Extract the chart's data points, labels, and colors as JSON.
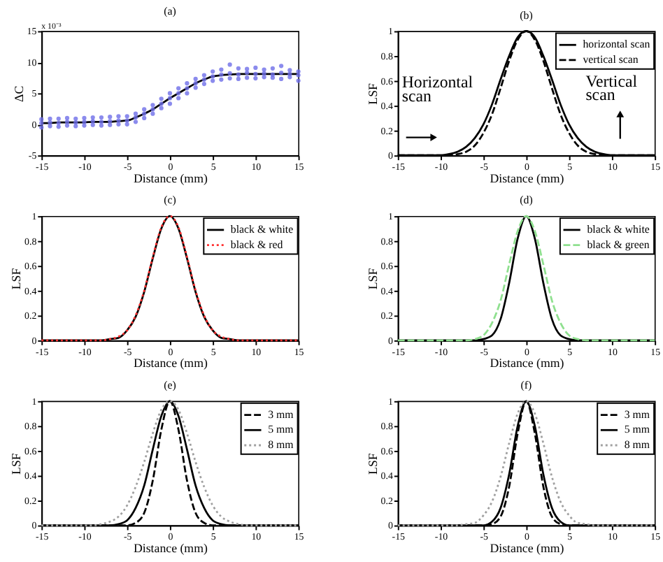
{
  "chart_data": [
    {
      "type": "scatter",
      "title": "(a)",
      "xlabel": "Distance (mm)",
      "ylabel": "ΔC",
      "annotations": [
        "x 10⁻³"
      ],
      "xlim": [
        -15,
        15
      ],
      "xticks": [
        -15,
        -10,
        -5,
        0,
        5,
        10,
        15
      ],
      "ylim": [
        -5,
        15
      ],
      "yticks": [
        -5,
        0,
        5,
        10,
        15
      ],
      "x": [
        -15,
        -14,
        -13,
        -12,
        -11,
        -10,
        -9,
        -8,
        -7,
        -6,
        -5,
        -4,
        -3,
        -2,
        -1,
        0,
        1,
        2,
        3,
        4,
        5,
        6,
        7,
        8,
        9,
        10,
        11,
        12,
        13,
        14,
        15
      ],
      "series": [
        {
          "type": "scatter",
          "marker": "circle",
          "color": "#6e6ee8",
          "x": [
            -15,
            -15,
            -15,
            -14,
            -14,
            -14,
            -13,
            -13,
            -13,
            -12,
            -12,
            -12,
            -11,
            -11,
            -11,
            -10,
            -10,
            -10,
            -9,
            -9,
            -9,
            -8,
            -8,
            -8,
            -7,
            -7,
            -7,
            -6,
            -6,
            -6,
            -5,
            -5,
            -5,
            -4,
            -4,
            -4,
            -3,
            -3,
            -3,
            -2,
            -2,
            -2,
            -1,
            -1,
            -1,
            0,
            0,
            0,
            1,
            1,
            1,
            2,
            2,
            2,
            3,
            3,
            3,
            4,
            4,
            4,
            5,
            5,
            5,
            6,
            6,
            6,
            7,
            7,
            7,
            8,
            8,
            8,
            9,
            9,
            9,
            10,
            10,
            10,
            11,
            11,
            11,
            12,
            12,
            12,
            13,
            13,
            13,
            14,
            14,
            14,
            15,
            15,
            15
          ],
          "values": [
            -0.5,
            0.2,
            0.8,
            -0.3,
            0.3,
            0.9,
            -0.4,
            0.2,
            0.9,
            -0.2,
            0.4,
            1.0,
            -0.3,
            0.3,
            0.9,
            -0.2,
            0.4,
            1.0,
            -0.1,
            0.5,
            1.1,
            -0.2,
            0.4,
            1.1,
            -0.1,
            0.5,
            1.2,
            0.0,
            0.6,
            1.3,
            0.0,
            0.6,
            1.3,
            0.4,
            1.1,
            1.7,
            1.0,
            1.7,
            2.4,
            1.7,
            2.4,
            3.1,
            2.6,
            3.3,
            4.1,
            3.3,
            4.2,
            5.0,
            4.2,
            5.0,
            5.8,
            5.0,
            5.8,
            6.6,
            5.9,
            6.6,
            7.3,
            6.5,
            7.2,
            7.9,
            7.0,
            7.7,
            8.5,
            7.2,
            8.0,
            8.8,
            7.4,
            8.2,
            9.6,
            7.3,
            8.0,
            9.0,
            7.5,
            8.3,
            8.9,
            7.4,
            8.1,
            9.1,
            7.6,
            8.2,
            8.8,
            7.5,
            8.0,
            9.0,
            7.3,
            8.3,
            9.4,
            7.6,
            8.1,
            8.7,
            7.0,
            7.9,
            8.5
          ]
        },
        {
          "type": "line",
          "line_style": "solid",
          "color": "#000000",
          "values": [
            0.2,
            0.2,
            0.3,
            0.3,
            0.3,
            0.3,
            0.4,
            0.4,
            0.4,
            0.5,
            0.6,
            1.1,
            1.7,
            2.4,
            3.3,
            4.2,
            5.0,
            5.8,
            6.6,
            7.2,
            7.7,
            7.9,
            8.0,
            8.1,
            8.1,
            8.1,
            8.1,
            8.1,
            8.1,
            8.1,
            8.1
          ]
        }
      ]
    },
    {
      "type": "line",
      "title": "(b)",
      "xlabel": "Distance (mm)",
      "ylabel": "LSF",
      "annotations": [
        "Horizontal scan",
        "Vertical scan"
      ],
      "xlim": [
        -15,
        15
      ],
      "xticks": [
        -15,
        -10,
        -5,
        0,
        5,
        10,
        15
      ],
      "ylim": [
        0,
        1
      ],
      "yticks": [
        0,
        0.2,
        0.4,
        0.6,
        0.8,
        1
      ],
      "legend": "top right",
      "x": [
        -15,
        -14,
        -13,
        -12,
        -11,
        -10,
        -9,
        -8,
        -7,
        -6,
        -5,
        -4,
        -3,
        -2,
        -1,
        0,
        1,
        2,
        3,
        4,
        5,
        6,
        7,
        8,
        9,
        10,
        11,
        12,
        13,
        14,
        15
      ],
      "series": [
        {
          "name": "horizontal scan",
          "color": "#000000",
          "line_style": "solid",
          "values": [
            0,
            0,
            0,
            0,
            0,
            0,
            0.01,
            0.03,
            0.07,
            0.14,
            0.25,
            0.41,
            0.61,
            0.8,
            0.95,
            1,
            0.95,
            0.8,
            0.61,
            0.41,
            0.25,
            0.14,
            0.07,
            0.03,
            0.01,
            0,
            0,
            0,
            0,
            0,
            0
          ]
        },
        {
          "name": "vertical scan",
          "color": "#000000",
          "line_style": "dashed",
          "values": [
            0,
            0,
            0,
            0,
            0,
            0,
            0,
            0.01,
            0.03,
            0.08,
            0.18,
            0.33,
            0.54,
            0.76,
            0.93,
            1,
            0.93,
            0.76,
            0.54,
            0.33,
            0.18,
            0.08,
            0.03,
            0.01,
            0,
            0,
            0,
            0,
            0,
            0,
            0
          ]
        }
      ]
    },
    {
      "type": "line",
      "title": "(c)",
      "xlabel": "Distance (mm)",
      "ylabel": "LSF",
      "xlim": [
        -15,
        15
      ],
      "xticks": [
        -15,
        -10,
        -5,
        0,
        5,
        10,
        15
      ],
      "ylim": [
        0,
        1
      ],
      "yticks": [
        0,
        0.2,
        0.4,
        0.6,
        0.8,
        1
      ],
      "legend": "top right",
      "x": [
        -15,
        -14,
        -13,
        -12,
        -11,
        -10,
        -9,
        -8,
        -7,
        -6,
        -5,
        -4,
        -3,
        -2,
        -1,
        0,
        1,
        2,
        3,
        4,
        5,
        6,
        7,
        8,
        9,
        10,
        11,
        12,
        13,
        14,
        15
      ],
      "series": [
        {
          "name": "black & white",
          "color": "#000000",
          "line_style": "solid",
          "values": [
            0,
            0,
            0,
            0,
            0,
            0,
            0,
            0,
            0.01,
            0.02,
            0.08,
            0.19,
            0.39,
            0.66,
            0.9,
            1,
            0.9,
            0.66,
            0.39,
            0.19,
            0.08,
            0.02,
            0.01,
            0,
            0,
            0,
            0,
            0,
            0,
            0,
            0
          ]
        },
        {
          "name": "black & red",
          "color": "#ff3030",
          "line_style": "dotted",
          "values": [
            0,
            0,
            0,
            0,
            0,
            0,
            0,
            0,
            0.01,
            0.03,
            0.08,
            0.2,
            0.4,
            0.67,
            0.91,
            1,
            0.91,
            0.67,
            0.4,
            0.2,
            0.08,
            0.03,
            0.01,
            0,
            0,
            0,
            0,
            0,
            0,
            0,
            0
          ]
        }
      ]
    },
    {
      "type": "line",
      "title": "(d)",
      "xlabel": "Distance (mm)",
      "ylabel": "LSF",
      "xlim": [
        -15,
        15
      ],
      "xticks": [
        -15,
        -10,
        -5,
        0,
        5,
        10,
        15
      ],
      "ylim": [
        0,
        1
      ],
      "yticks": [
        0,
        0.2,
        0.4,
        0.6,
        0.8,
        1
      ],
      "legend": "top right",
      "x": [
        -15,
        -14,
        -13,
        -12,
        -11,
        -10,
        -9,
        -8,
        -7,
        -6,
        -5,
        -4,
        -3,
        -2,
        -1,
        0,
        1,
        2,
        3,
        4,
        5,
        6,
        7,
        8,
        9,
        10,
        11,
        12,
        13,
        14,
        15
      ],
      "series": [
        {
          "name": "black & white",
          "color": "#000000",
          "line_style": "solid",
          "values": [
            0,
            0,
            0,
            0,
            0,
            0,
            0,
            0,
            0,
            0,
            0.01,
            0.04,
            0.17,
            0.46,
            0.82,
            1,
            0.82,
            0.46,
            0.17,
            0.04,
            0.01,
            0,
            0,
            0,
            0,
            0,
            0,
            0,
            0,
            0,
            0
          ]
        },
        {
          "name": "black & green",
          "color": "#8fe08f",
          "line_style": "dashed",
          "values": [
            0,
            0,
            0,
            0,
            0,
            0,
            0,
            0,
            0,
            0.01,
            0.04,
            0.14,
            0.32,
            0.61,
            0.88,
            1,
            0.88,
            0.61,
            0.32,
            0.14,
            0.04,
            0.01,
            0,
            0,
            0,
            0,
            0,
            0,
            0,
            0,
            0
          ]
        }
      ]
    },
    {
      "type": "line",
      "title": "(e)",
      "xlabel": "Distance (mm)",
      "ylabel": "LSF",
      "xlim": [
        -15,
        15
      ],
      "xticks": [
        -15,
        -10,
        -5,
        0,
        5,
        10,
        15
      ],
      "ylim": [
        0,
        1
      ],
      "yticks": [
        0,
        0.2,
        0.4,
        0.6,
        0.8,
        1
      ],
      "legend": "top right",
      "x": [
        -15,
        -14,
        -13,
        -12,
        -11,
        -10,
        -9,
        -8,
        -7,
        -6,
        -5,
        -4,
        -3,
        -2,
        -1,
        0,
        1,
        2,
        3,
        4,
        5,
        6,
        7,
        8,
        9,
        10,
        11,
        12,
        13,
        14,
        15
      ],
      "series": [
        {
          "name": "3 mm",
          "color": "#000000",
          "line_style": "dashed",
          "values": [
            0,
            0,
            0,
            0,
            0,
            0,
            0,
            0,
            0,
            0,
            0,
            0.02,
            0.1,
            0.36,
            0.77,
            1,
            0.77,
            0.36,
            0.1,
            0.02,
            0,
            0,
            0,
            0,
            0,
            0,
            0,
            0,
            0,
            0,
            0
          ]
        },
        {
          "name": "5 mm",
          "color": "#000000",
          "line_style": "solid",
          "values": [
            0,
            0,
            0,
            0,
            0,
            0,
            0,
            0,
            0,
            0.01,
            0.04,
            0.14,
            0.32,
            0.61,
            0.88,
            1,
            0.88,
            0.61,
            0.32,
            0.14,
            0.04,
            0.01,
            0,
            0,
            0,
            0,
            0,
            0,
            0,
            0,
            0
          ]
        },
        {
          "name": "8 mm",
          "color": "#a0a0a0",
          "line_style": "dotted",
          "values": [
            0,
            0,
            0,
            0,
            0,
            0,
            0,
            0.01,
            0.03,
            0.07,
            0.16,
            0.31,
            0.51,
            0.74,
            0.93,
            1,
            0.93,
            0.74,
            0.51,
            0.31,
            0.16,
            0.07,
            0.03,
            0.01,
            0,
            0,
            0,
            0,
            0,
            0,
            0
          ]
        }
      ]
    },
    {
      "type": "line",
      "title": "(f)",
      "xlabel": "Distance (mm)",
      "ylabel": "LSF",
      "xlim": [
        -15,
        15
      ],
      "xticks": [
        -15,
        -10,
        -5,
        0,
        5,
        10,
        15
      ],
      "ylim": [
        0,
        1
      ],
      "yticks": [
        0,
        0.2,
        0.4,
        0.6,
        0.8,
        1
      ],
      "legend": "top right",
      "x": [
        -15,
        -14,
        -13,
        -12,
        -11,
        -10,
        -9,
        -8,
        -7,
        -6,
        -5,
        -4,
        -3,
        -2,
        -1,
        0,
        1,
        2,
        3,
        4,
        5,
        6,
        7,
        8,
        9,
        10,
        11,
        12,
        13,
        14,
        15
      ],
      "series": [
        {
          "name": "3 mm",
          "color": "#000000",
          "line_style": "dashed",
          "values": [
            0,
            0,
            0,
            0,
            0,
            0,
            0,
            0,
            0,
            0,
            0,
            0.01,
            0.07,
            0.31,
            0.74,
            1,
            0.74,
            0.31,
            0.07,
            0.01,
            0,
            0,
            0,
            0,
            0,
            0,
            0,
            0,
            0,
            0,
            0
          ]
        },
        {
          "name": "5 mm",
          "color": "#000000",
          "line_style": "solid",
          "values": [
            0,
            0,
            0,
            0,
            0,
            0,
            0,
            0,
            0,
            0,
            0,
            0.03,
            0.14,
            0.41,
            0.8,
            1,
            0.8,
            0.41,
            0.14,
            0.03,
            0,
            0,
            0,
            0,
            0,
            0,
            0,
            0,
            0,
            0,
            0
          ]
        },
        {
          "name": "8 mm",
          "color": "#a0a0a0",
          "line_style": "dotted",
          "values": [
            0,
            0,
            0,
            0,
            0,
            0,
            0,
            0,
            0.01,
            0.02,
            0.08,
            0.19,
            0.39,
            0.66,
            0.9,
            1,
            0.9,
            0.66,
            0.39,
            0.19,
            0.08,
            0.02,
            0.01,
            0,
            0,
            0,
            0,
            0,
            0,
            0,
            0
          ]
        }
      ]
    }
  ]
}
